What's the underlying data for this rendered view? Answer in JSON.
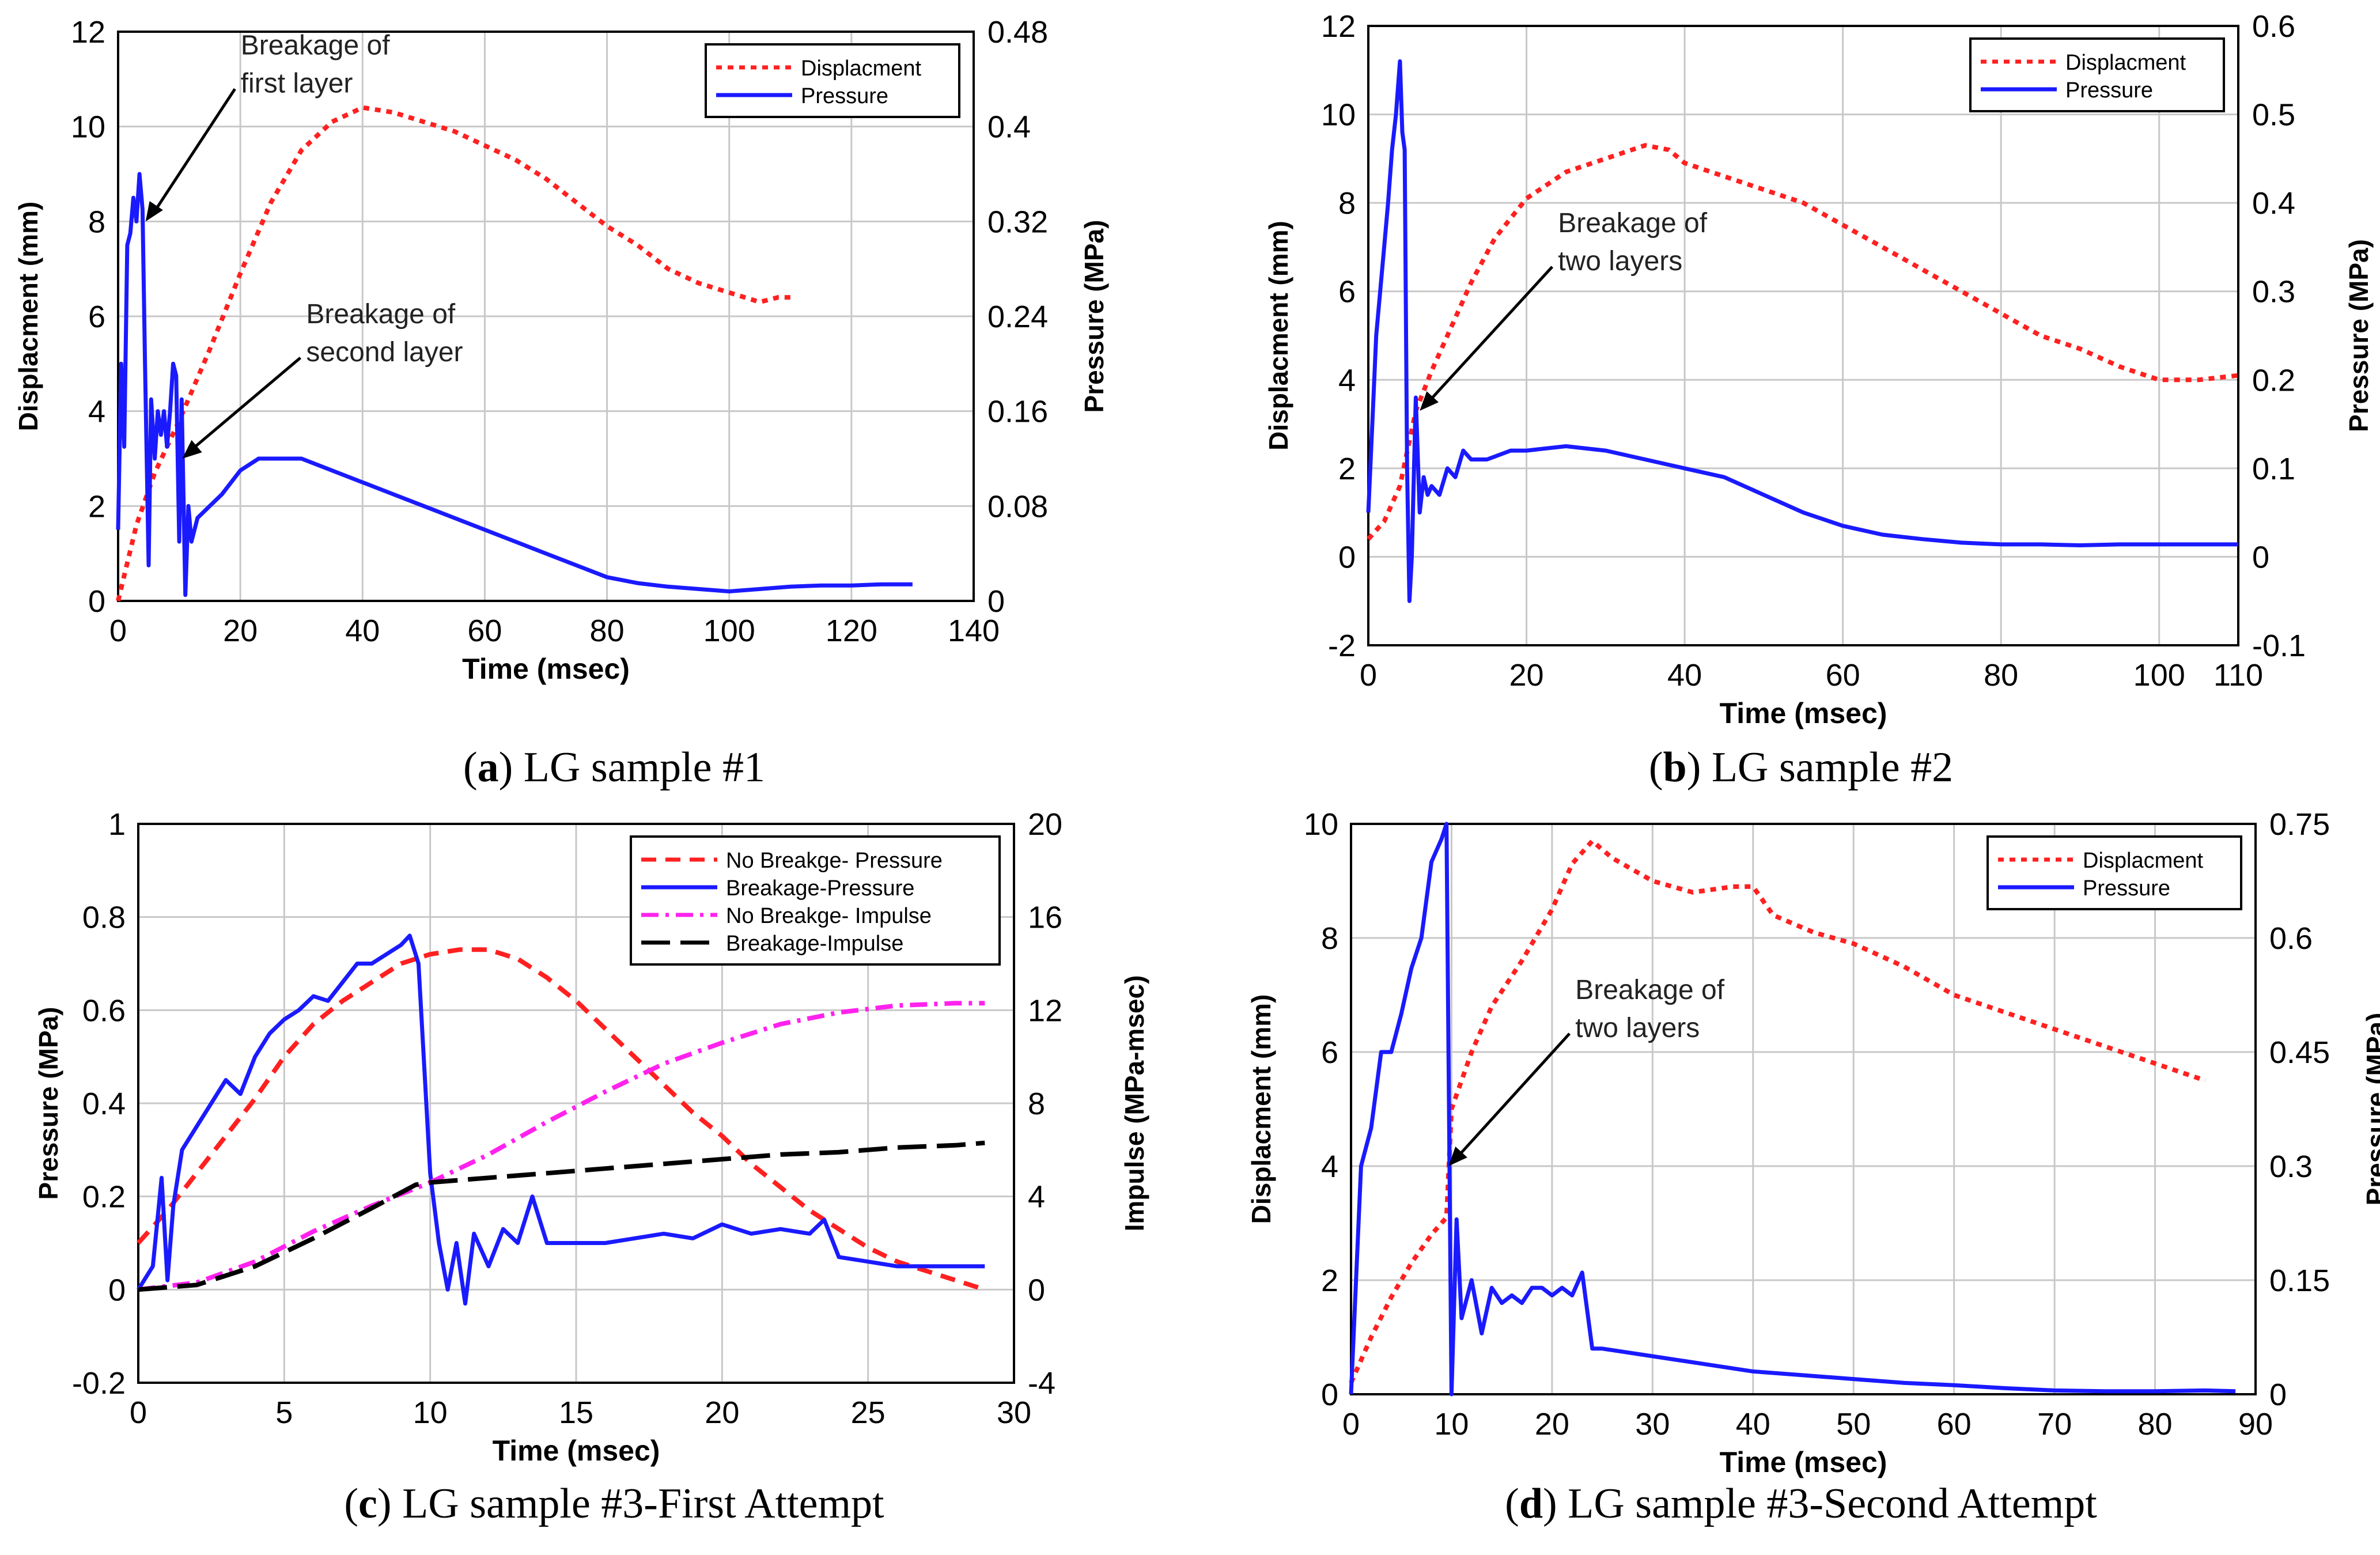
{
  "chart_data": [
    {
      "type": "line",
      "panel": "a",
      "caption": {
        "letter": "a",
        "text": "LG sample #1"
      },
      "xlabel": "Time (msec)",
      "ylabel": "Displacment (mm)",
      "ylabel_right": "Pressure (MPa)",
      "xlim": [
        0,
        140
      ],
      "ylim": [
        0,
        12
      ],
      "ylim_right": [
        0,
        0.48
      ],
      "xticks": [
        "0",
        "20",
        "40",
        "60",
        "80",
        "100",
        "120",
        "140"
      ],
      "yticks": [
        "0",
        "2",
        "4",
        "6",
        "8",
        "10",
        "12"
      ],
      "yticks_right": [
        "0",
        "0.08",
        "0.16",
        "0.24",
        "0.32",
        "0.4",
        "0.48"
      ],
      "grid": true,
      "legend": {
        "position": "top-right",
        "entries": [
          "Displacment",
          "Pressure"
        ]
      },
      "series": [
        {
          "name": "Displacment",
          "axis": "left",
          "color": "#ff2020",
          "style": "dotted",
          "x": [
            0,
            3,
            6,
            10,
            15,
            20,
            25,
            30,
            35,
            40,
            45,
            50,
            55,
            60,
            65,
            70,
            75,
            80,
            85,
            90,
            95,
            100,
            105,
            108,
            110
          ],
          "y": [
            0,
            1.6,
            2.7,
            3.8,
            5.3,
            6.9,
            8.4,
            9.5,
            10.1,
            10.4,
            10.3,
            10.1,
            9.9,
            9.6,
            9.3,
            8.9,
            8.4,
            7.9,
            7.5,
            7.0,
            6.7,
            6.5,
            6.3,
            6.4,
            6.4
          ]
        },
        {
          "name": "Pressure",
          "axis": "right",
          "color": "#1a1aff",
          "style": "solid",
          "x": [
            0,
            0.5,
            1,
            1.5,
            2,
            2.5,
            3,
            3.5,
            4,
            4.4,
            5,
            5.4,
            6,
            6.5,
            7,
            7.5,
            8,
            8.5,
            9,
            9.5,
            10,
            10.4,
            11,
            11.5,
            12,
            13,
            15,
            17,
            20,
            23,
            27,
            30,
            35,
            40,
            45,
            50,
            55,
            60,
            65,
            70,
            75,
            80,
            85,
            90,
            95,
            100,
            105,
            110,
            115,
            120,
            125,
            130
          ],
          "y": [
            0.06,
            0.2,
            0.13,
            0.3,
            0.31,
            0.34,
            0.32,
            0.36,
            0.33,
            0.2,
            0.03,
            0.17,
            0.12,
            0.16,
            0.14,
            0.16,
            0.13,
            0.16,
            0.2,
            0.19,
            0.05,
            0.17,
            0.005,
            0.08,
            0.05,
            0.07,
            0.08,
            0.09,
            0.11,
            0.12,
            0.12,
            0.12,
            0.11,
            0.1,
            0.09,
            0.08,
            0.07,
            0.06,
            0.05,
            0.04,
            0.03,
            0.02,
            0.015,
            0.012,
            0.01,
            0.008,
            0.01,
            0.012,
            0.013,
            0.013,
            0.014,
            0.014
          ]
        }
      ],
      "annotations": [
        {
          "text": [
            "Breakage of",
            "first layer"
          ],
          "arrow_to": [
            4.5,
            0.32
          ]
        },
        {
          "text": [
            "Breakage of",
            "second layer"
          ],
          "arrow_to": [
            10.5,
            0.12
          ]
        }
      ]
    },
    {
      "type": "line",
      "panel": "b",
      "caption": {
        "letter": "b",
        "text": "LG sample #2"
      },
      "xlabel": "Time (msec)",
      "ylabel": "Displacment (mm)",
      "ylabel_right": "Pressure (MPa)",
      "xlim": [
        0,
        110
      ],
      "ylim": [
        -2,
        12
      ],
      "ylim_right": [
        -0.1,
        0.6
      ],
      "xticks": [
        "0",
        "20",
        "40",
        "60",
        "80",
        "100",
        "110"
      ],
      "yticks": [
        "-2",
        "0",
        "2",
        "4",
        "6",
        "8",
        "10",
        "12"
      ],
      "yticks_right": [
        "-0.1",
        "0",
        "0.1",
        "0.2",
        "0.3",
        "0.4",
        "0.5",
        "0.6"
      ],
      "grid": true,
      "legend": {
        "position": "top-right",
        "entries": [
          "Displacment",
          "Pressure"
        ]
      },
      "series": [
        {
          "name": "Displacment",
          "axis": "left",
          "color": "#ff2020",
          "style": "dotted",
          "x": [
            0,
            2,
            4,
            6,
            8,
            10,
            13,
            16,
            20,
            25,
            30,
            35,
            38,
            40,
            45,
            50,
            55,
            60,
            65,
            70,
            75,
            80,
            85,
            90,
            95,
            100,
            105,
            110
          ],
          "y": [
            0.4,
            0.8,
            1.6,
            3.3,
            4.2,
            5.0,
            6.2,
            7.2,
            8.1,
            8.7,
            9.0,
            9.3,
            9.2,
            8.9,
            8.6,
            8.3,
            8.0,
            7.5,
            7.0,
            6.5,
            6.0,
            5.5,
            5.0,
            4.7,
            4.3,
            4.0,
            4.0,
            4.1
          ]
        },
        {
          "name": "Pressure",
          "axis": "right",
          "color": "#1a1aff",
          "style": "solid",
          "x": [
            0,
            0.5,
            1,
            1.5,
            2,
            2.5,
            3,
            3.5,
            4,
            4.3,
            4.6,
            4.9,
            5.2,
            5.5,
            6,
            6.5,
            7,
            7.5,
            8,
            9,
            10,
            11,
            12,
            13,
            15,
            18,
            20,
            25,
            30,
            35,
            40,
            45,
            50,
            55,
            60,
            65,
            70,
            75,
            80,
            85,
            90,
            95,
            100,
            105,
            110
          ],
          "y": [
            0.05,
            0.15,
            0.25,
            0.3,
            0.35,
            0.4,
            0.46,
            0.5,
            0.56,
            0.48,
            0.46,
            0.1,
            -0.05,
            0.0,
            0.18,
            0.05,
            0.09,
            0.07,
            0.08,
            0.07,
            0.1,
            0.09,
            0.12,
            0.11,
            0.11,
            0.12,
            0.12,
            0.125,
            0.12,
            0.11,
            0.1,
            0.09,
            0.07,
            0.05,
            0.035,
            0.025,
            0.02,
            0.016,
            0.014,
            0.014,
            0.013,
            0.014,
            0.014,
            0.014,
            0.014
          ]
        }
      ],
      "annotations": [
        {
          "text": [
            "Breakage of",
            "two layers"
          ],
          "arrow_to": [
            6.5,
            3.3
          ]
        }
      ]
    },
    {
      "type": "line",
      "panel": "c",
      "caption": {
        "letter": "c",
        "text": "LG sample #3-First Attempt"
      },
      "xlabel": "Time (msec)",
      "ylabel": "Pressure (MPa)",
      "ylabel_right": "Impulse (MPa-msec)",
      "xlim": [
        0,
        30
      ],
      "ylim": [
        -0.2,
        1
      ],
      "ylim_right": [
        -4,
        20
      ],
      "xticks": [
        "0",
        "5",
        "10",
        "15",
        "20",
        "25",
        "30"
      ],
      "yticks": [
        "-0.2",
        "0",
        "0.2",
        "0.4",
        "0.6",
        "0.8",
        "1"
      ],
      "yticks_right": [
        "-4",
        "0",
        "4",
        "8",
        "12",
        "16",
        "20"
      ],
      "grid": true,
      "legend": {
        "position": "top-right",
        "entries": [
          "No Breakge- Pressure",
          "Breakage-Pressure",
          "No Breakge- Impulse",
          "Breakage-Impulse"
        ]
      },
      "series": [
        {
          "name": "No Breakge- Pressure",
          "axis": "left",
          "color": "#ff2020",
          "style": "dashed",
          "x": [
            0,
            1,
            2,
            3,
            4,
            5,
            6,
            7,
            8,
            9,
            10,
            11,
            12,
            13,
            14,
            15,
            16,
            17,
            18,
            19,
            20,
            21,
            22,
            23,
            24,
            25,
            26,
            27,
            28,
            29
          ],
          "y": [
            0.1,
            0.17,
            0.25,
            0.33,
            0.41,
            0.5,
            0.57,
            0.62,
            0.66,
            0.7,
            0.72,
            0.73,
            0.73,
            0.71,
            0.67,
            0.62,
            0.56,
            0.5,
            0.44,
            0.38,
            0.33,
            0.27,
            0.22,
            0.17,
            0.13,
            0.09,
            0.06,
            0.04,
            0.02,
            0.0
          ]
        },
        {
          "name": "Breakage-Pressure",
          "axis": "left",
          "color": "#1a1aff",
          "style": "solid",
          "x": [
            0,
            0.5,
            0.8,
            1.0,
            1.2,
            1.5,
            2,
            2.5,
            3,
            3.5,
            4,
            4.5,
            5,
            5.5,
            6,
            6.5,
            7,
            7.5,
            8,
            8.5,
            9,
            9.3,
            9.6,
            10,
            10.3,
            10.6,
            10.9,
            11.2,
            11.5,
            12,
            12.5,
            13,
            13.5,
            14,
            15,
            16,
            17,
            18,
            19,
            20,
            21,
            22,
            23,
            23.5,
            24,
            25,
            26,
            27,
            28,
            29
          ],
          "y": [
            0,
            0.05,
            0.24,
            0.02,
            0.18,
            0.3,
            0.35,
            0.4,
            0.45,
            0.42,
            0.5,
            0.55,
            0.58,
            0.6,
            0.63,
            0.62,
            0.66,
            0.7,
            0.7,
            0.72,
            0.74,
            0.76,
            0.7,
            0.25,
            0.1,
            0.0,
            0.1,
            -0.03,
            0.12,
            0.05,
            0.13,
            0.1,
            0.2,
            0.1,
            0.1,
            0.1,
            0.11,
            0.12,
            0.11,
            0.14,
            0.12,
            0.13,
            0.12,
            0.15,
            0.07,
            0.06,
            0.05,
            0.05,
            0.05,
            0.05
          ]
        },
        {
          "name": "No Breakge- Impulse",
          "axis": "right",
          "color": "#ff22ee",
          "style": "dashdot",
          "x": [
            0,
            2,
            4,
            6,
            8,
            10,
            12,
            14,
            16,
            18,
            20,
            22,
            24,
            26,
            28,
            29
          ],
          "y": [
            0,
            0.3,
            1.2,
            2.5,
            3.6,
            4.6,
            5.8,
            7.2,
            8.5,
            9.7,
            10.6,
            11.4,
            11.9,
            12.2,
            12.3,
            12.3
          ]
        },
        {
          "name": "Breakage-Impulse",
          "axis": "right",
          "color": "#000000",
          "style": "longdash",
          "x": [
            0,
            2,
            4,
            6,
            8,
            9.5,
            10,
            12,
            14,
            16,
            18,
            20,
            22,
            24,
            26,
            28,
            29
          ],
          "y": [
            0,
            0.2,
            1.0,
            2.2,
            3.5,
            4.5,
            4.6,
            4.8,
            5.0,
            5.2,
            5.4,
            5.6,
            5.8,
            5.9,
            6.1,
            6.2,
            6.3
          ]
        }
      ]
    },
    {
      "type": "line",
      "panel": "d",
      "caption": {
        "letter": "d",
        "text": "LG sample #3-Second Attempt"
      },
      "xlabel": "Time (msec)",
      "ylabel": "Displacment (mm)",
      "ylabel_right": "Pressure (MPa)",
      "xlim": [
        0,
        90
      ],
      "ylim": [
        0,
        10
      ],
      "ylim_right": [
        0,
        0.75
      ],
      "xticks": [
        "0",
        "10",
        "20",
        "30",
        "40",
        "50",
        "60",
        "70",
        "80",
        "90"
      ],
      "yticks": [
        "0",
        "2",
        "4",
        "6",
        "8",
        "10"
      ],
      "yticks_right": [
        "0",
        "0.15",
        "0.3",
        "0.45",
        "0.6",
        "0.75"
      ],
      "grid": true,
      "legend": {
        "position": "top-right",
        "entries": [
          "Displacment",
          "Pressure"
        ]
      },
      "series": [
        {
          "name": "Displacment",
          "axis": "left",
          "color": "#ff2020",
          "style": "dotted",
          "x": [
            0,
            2,
            4,
            6,
            8,
            9.5,
            10,
            12,
            14,
            17,
            20,
            22,
            24,
            26,
            30,
            34,
            38,
            40,
            42,
            46,
            50,
            55,
            60,
            65,
            70,
            75,
            80,
            85
          ],
          "y": [
            0.2,
            1.0,
            1.7,
            2.3,
            2.8,
            3.1,
            5.0,
            6.0,
            6.8,
            7.6,
            8.5,
            9.3,
            9.7,
            9.4,
            9.0,
            8.8,
            8.9,
            8.9,
            8.4,
            8.1,
            7.9,
            7.5,
            7.0,
            6.7,
            6.4,
            6.1,
            5.8,
            5.5
          ]
        },
        {
          "name": "Pressure",
          "axis": "right",
          "color": "#1a1aff",
          "style": "solid",
          "x": [
            0,
            0.5,
            1,
            2,
            3,
            4,
            5,
            6,
            7,
            8,
            9,
            9.5,
            10,
            10.5,
            11,
            12,
            13,
            14,
            15,
            16,
            17,
            18,
            19,
            20,
            21,
            22,
            23,
            24,
            25,
            30,
            35,
            40,
            45,
            50,
            55,
            60,
            65,
            70,
            75,
            80,
            85,
            88
          ],
          "y": [
            0.0,
            0.15,
            0.3,
            0.35,
            0.45,
            0.45,
            0.5,
            0.56,
            0.6,
            0.7,
            0.73,
            0.75,
            0.0,
            0.23,
            0.1,
            0.15,
            0.08,
            0.14,
            0.12,
            0.13,
            0.12,
            0.14,
            0.14,
            0.13,
            0.14,
            0.13,
            0.16,
            0.06,
            0.06,
            0.05,
            0.04,
            0.03,
            0.025,
            0.02,
            0.015,
            0.012,
            0.008,
            0.005,
            0.004,
            0.004,
            0.005,
            0.004
          ]
        }
      ],
      "annotations": [
        {
          "text": [
            "Breakage of",
            "two layers"
          ],
          "arrow_to": [
            9.7,
            4.0
          ]
        }
      ]
    }
  ]
}
